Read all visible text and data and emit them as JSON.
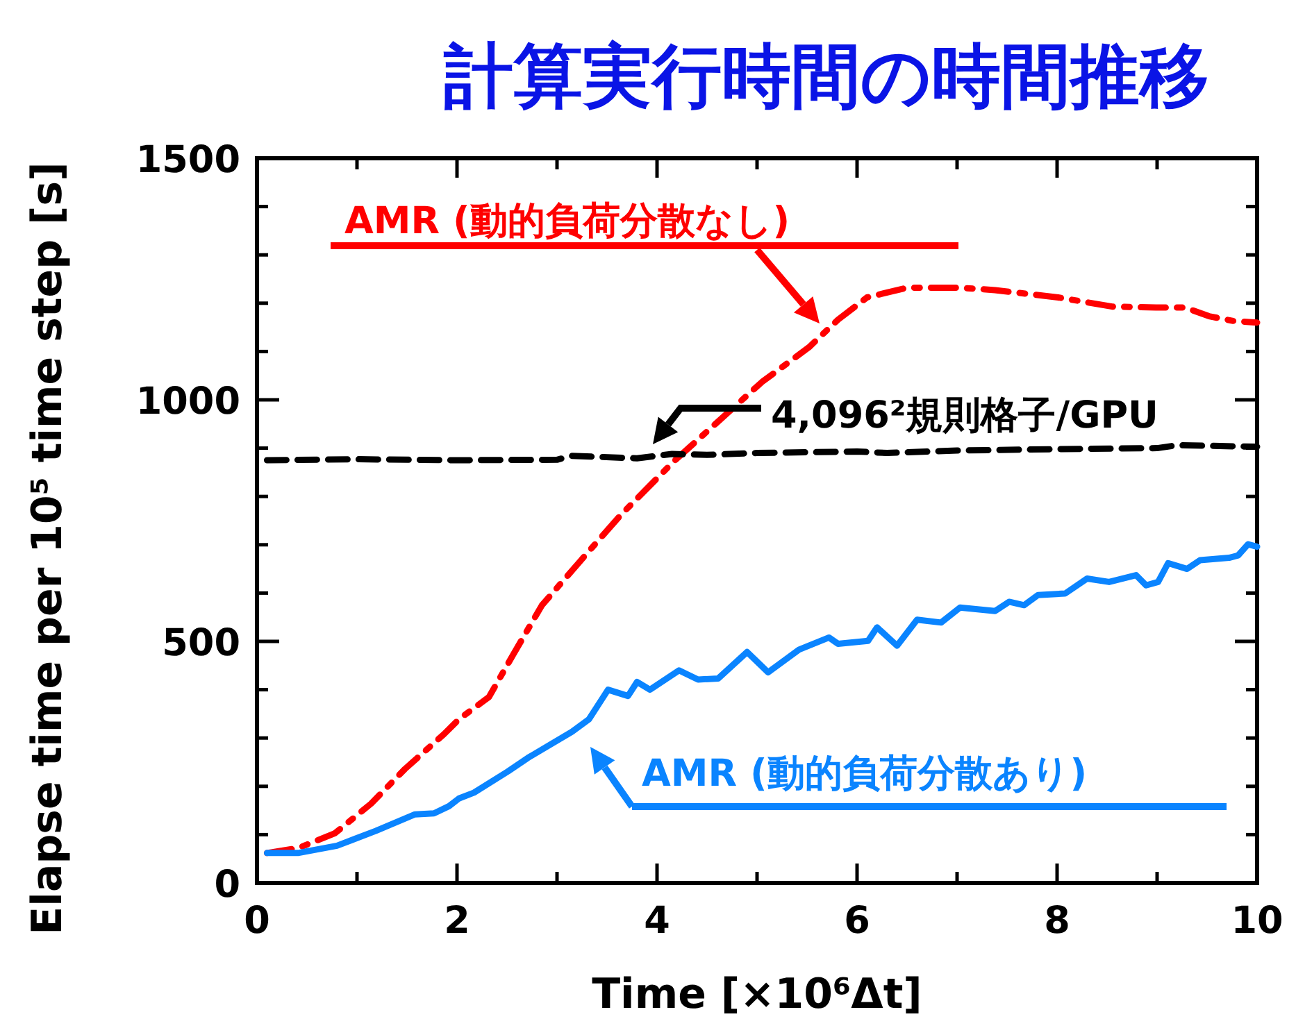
{
  "chart_data": {
    "type": "line",
    "title": "計算実行時間の時間推移",
    "xlabel": "Time [×10⁶Δt]",
    "ylabel": "Elapse time per 10⁵ time step [s]",
    "xlim": [
      0,
      10
    ],
    "ylim": [
      0,
      1500
    ],
    "xticks": [
      0,
      2,
      4,
      6,
      8,
      10
    ],
    "yticks": [
      0,
      500,
      1000,
      1500
    ],
    "grid": false,
    "legend": "right",
    "marker": "none",
    "series": [
      {
        "name": "AMR (動的負荷分散なし)",
        "color": "#ff0000",
        "line_style": "dashdot",
        "x": [
          0.1,
          0.41,
          0.78,
          1.14,
          1.48,
          1.87,
          2.02,
          2.32,
          2.56,
          2.85,
          3.24,
          3.63,
          4.17,
          4.61,
          5.05,
          5.52,
          5.81,
          6.1,
          6.5,
          7.03,
          7.38,
          8.01,
          8.55,
          8.99,
          9.28,
          9.52,
          9.77,
          10
        ],
        "values": [
          62,
          72,
          103,
          164,
          236,
          308,
          339,
          385,
          472,
          575,
          668,
          760,
          873,
          955,
          1037,
          1109,
          1166,
          1212,
          1232,
          1232,
          1227,
          1212,
          1193,
          1191,
          1191,
          1173,
          1163,
          1160
        ]
      },
      {
        "name": "4,096²規則格子/GPU",
        "color": "#000000",
        "line_style": "dashed",
        "x": [
          0.1,
          1,
          2,
          3,
          3.15,
          3.8,
          4.15,
          4.5,
          5,
          6,
          6.3,
          7,
          8,
          9,
          9.2,
          10
        ],
        "values": [
          875,
          877,
          875,
          876,
          884,
          879,
          888,
          886,
          890,
          893,
          890,
          895,
          898,
          900,
          906,
          903
        ]
      },
      {
        "name": "AMR (動的負荷分散あり)",
        "color": "#0a84ff",
        "line_style": "solid",
        "x": [
          0.1,
          0.41,
          0.8,
          1.19,
          1.58,
          1.77,
          1.92,
          2.02,
          2.17,
          2.51,
          2.71,
          3.15,
          3.32,
          3.51,
          3.71,
          3.8,
          3.93,
          4.22,
          4.41,
          4.61,
          4.9,
          5.11,
          5.42,
          5.72,
          5.81,
          6.11,
          6.2,
          6.4,
          6.6,
          6.84,
          7.03,
          7.38,
          7.52,
          7.67,
          7.81,
          8.08,
          8.3,
          8.52,
          8.79,
          8.89,
          9.01,
          9.11,
          9.3,
          9.43,
          9.72,
          9.81,
          9.91,
          10
        ],
        "values": [
          62,
          62,
          77,
          108,
          142,
          144,
          159,
          175,
          187,
          231,
          259,
          313,
          339,
          400,
          387,
          416,
          400,
          440,
          421,
          423,
          478,
          436,
          483,
          508,
          495,
          501,
          529,
          491,
          545,
          539,
          570,
          563,
          582,
          575,
          596,
          599,
          630,
          623,
          637,
          616,
          623,
          662,
          650,
          668,
          673,
          678,
          701,
          696
        ]
      }
    ]
  }
}
